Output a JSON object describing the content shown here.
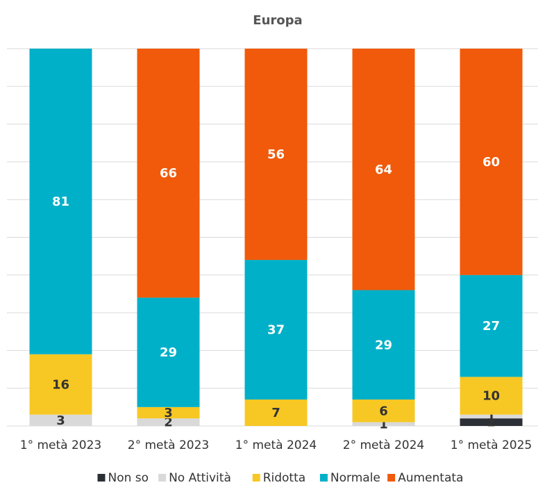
{
  "chart_data": {
    "type": "stacked_bar",
    "title": "Europa",
    "categories": [
      "1° metà 2023",
      "2° metà 2023",
      "1° metà 2024",
      "2° metà 2024",
      "1° metà 2025"
    ],
    "series": [
      {
        "name": "Non so",
        "color": "#2b2f36",
        "values": [
          null,
          null,
          null,
          null,
          2
        ]
      },
      {
        "name": "No Attività",
        "color": "#d9d9d9",
        "values": [
          3,
          2,
          null,
          1,
          1
        ]
      },
      {
        "name": "Ridotta",
        "color": "#f7c824",
        "values": [
          16,
          3,
          7,
          6,
          10
        ]
      },
      {
        "name": "Normale",
        "color": "#00b0c8",
        "values": [
          81,
          29,
          37,
          29,
          27
        ]
      },
      {
        "name": "Aumentata",
        "color": "#f05a0a",
        "values": [
          null,
          66,
          56,
          64,
          60
        ]
      }
    ],
    "ylim": [
      0,
      100
    ],
    "yticks": [
      0,
      10,
      20,
      30,
      40,
      50,
      60,
      70,
      80,
      90,
      100
    ],
    "grid": true
  }
}
